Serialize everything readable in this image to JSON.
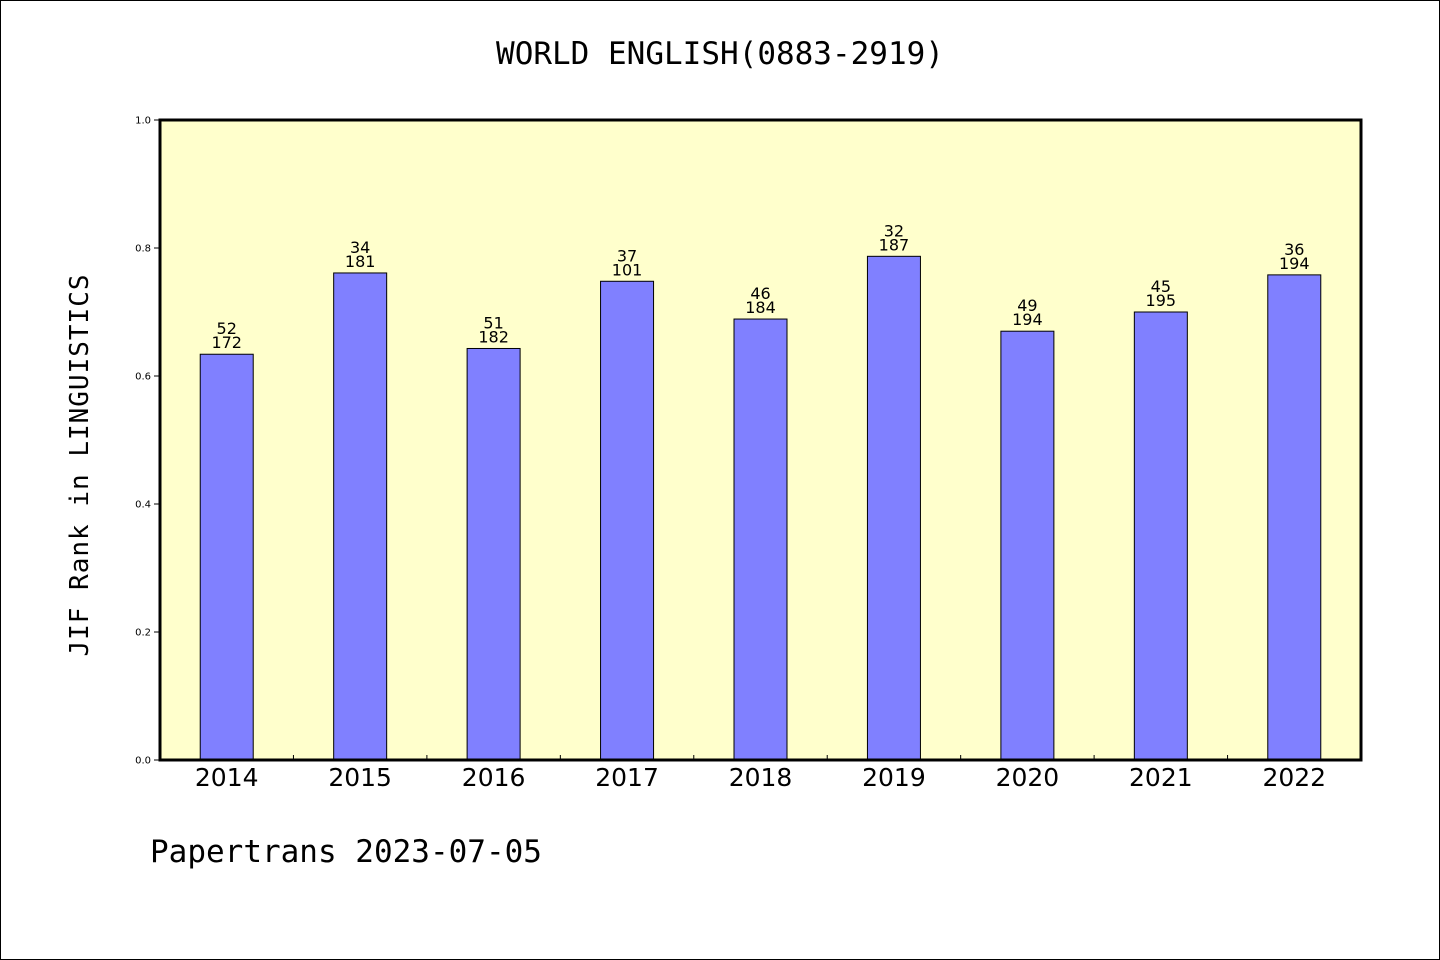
{
  "chart_data": {
    "type": "bar",
    "title": "WORLD ENGLISH(0883-2919)",
    "ylabel": "JIF Rank in LINGUISTICS",
    "xlabel": "",
    "footer": "Papertrans 2023-07-05",
    "categories": [
      "2014",
      "2015",
      "2016",
      "2017",
      "2018",
      "2019",
      "2020",
      "2021",
      "2022"
    ],
    "values": [
      0.634,
      0.761,
      0.643,
      0.748,
      0.689,
      0.787,
      0.67,
      0.7,
      0.758
    ],
    "rank": [
      "52",
      "34",
      "51",
      "37",
      "46",
      "32",
      "49",
      "45",
      "36"
    ],
    "total": [
      "172",
      "181",
      "182",
      "101",
      "184",
      "187",
      "194",
      "195",
      "194"
    ],
    "ylim": [
      0,
      1.0
    ],
    "yticks": [
      "0.0",
      "0.2",
      "0.4",
      "0.6",
      "0.8",
      "1.0"
    ],
    "grid": false,
    "legend": "none",
    "colors": {
      "bar_fill": "#8080ff",
      "plot_background": "#ffffcc",
      "axis": "#000000"
    }
  }
}
